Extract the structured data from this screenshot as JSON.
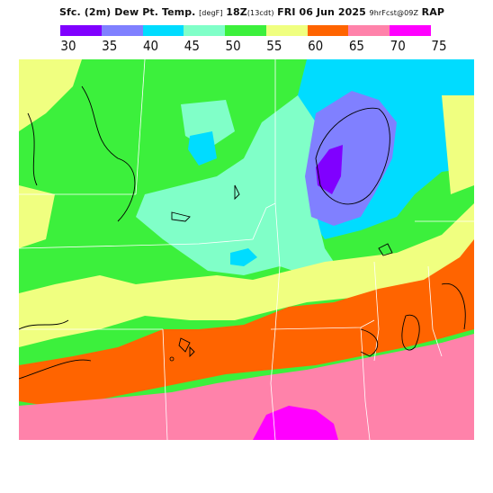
{
  "title": {
    "main": "Sfc. (2m) Dew Pt. Temp.",
    "units": "[degF]",
    "time": "18Z",
    "time_local": "(13cdt)",
    "date": "FRI 06 Jun 2025",
    "run": "9hrFcst@09Z",
    "model": "RAP"
  },
  "legend": {
    "ticks": [
      "30",
      "35",
      "40",
      "45",
      "50",
      "55",
      "60",
      "65",
      "70",
      "75"
    ],
    "colors": [
      "#8000ff",
      "#8080ff",
      "#00dcff",
      "#80ffc8",
      "#3cf03c",
      "#f0ff80",
      "#ff6400",
      "#ff82aa",
      "#ff00ff"
    ]
  },
  "map": {
    "bands": {
      "b30": "#8000ff",
      "b35": "#8080ff",
      "b40": "#00dcff",
      "b45": "#80ffc8",
      "b50": "#3cf03c",
      "b55": "#f0ff80",
      "b60": "#ff6400",
      "b65": "#ff82aa",
      "b70": "#ff00ff"
    }
  }
}
